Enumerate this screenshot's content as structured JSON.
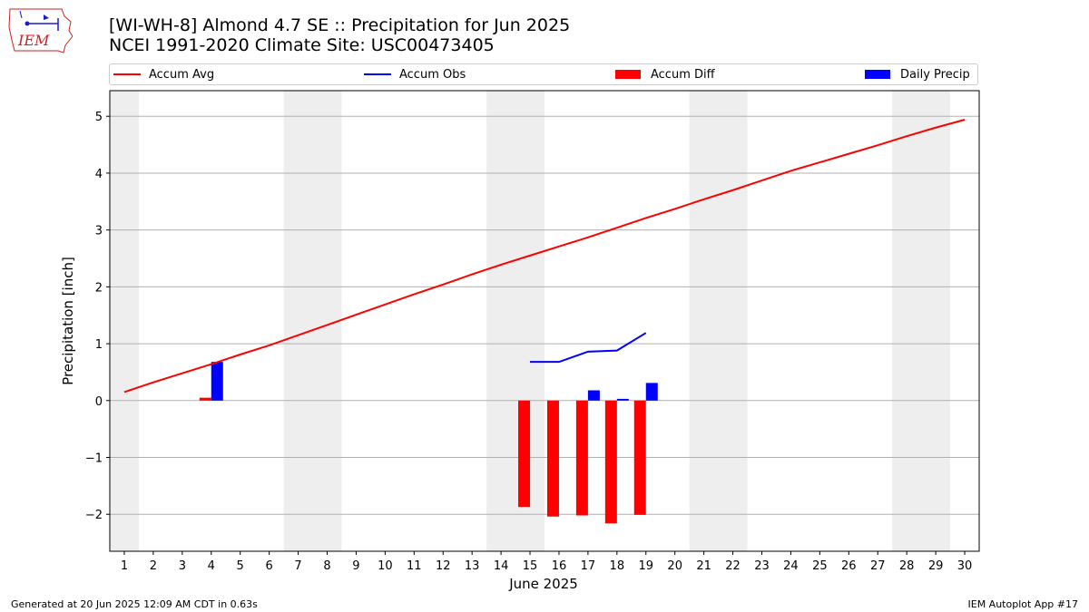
{
  "header": {
    "title_line1": "[WI-WH-8] Almond 4.7 SE :: Precipitation for Jun 2025",
    "title_line2": "NCEI 1991-2020 Climate Site: USC00473405",
    "logo_text": "IEM"
  },
  "legend": {
    "items": [
      {
        "label": "Accum Avg",
        "kind": "line",
        "color": "#ff0000"
      },
      {
        "label": "Accum Obs",
        "kind": "line",
        "color": "#0000ff"
      },
      {
        "label": "Accum Diff",
        "kind": "patch",
        "color": "#ff0000"
      },
      {
        "label": "Daily Precip",
        "kind": "patch",
        "color": "#0000ff"
      }
    ]
  },
  "chart_data": {
    "type": "bar",
    "xlabel": "June 2025",
    "ylabel": "Precipitation [inch]",
    "xlim": [
      0.5,
      30.5
    ],
    "ylim": [
      -2.65,
      5.45
    ],
    "x_ticks": [
      1,
      2,
      3,
      4,
      5,
      6,
      7,
      8,
      9,
      10,
      11,
      12,
      13,
      14,
      15,
      16,
      17,
      18,
      19,
      20,
      21,
      22,
      23,
      24,
      25,
      26,
      27,
      28,
      29,
      30
    ],
    "y_ticks": [
      -2,
      -1,
      0,
      1,
      2,
      3,
      4,
      5
    ],
    "y_tick_labels": [
      "−2",
      "−1",
      "0",
      "1",
      "2",
      "3",
      "4",
      "5"
    ],
    "grid": "horizontal",
    "legend_position": "top",
    "weekend_shading": [
      [
        0.5,
        1.5
      ],
      [
        6.5,
        8.5
      ],
      [
        13.5,
        15.5
      ],
      [
        20.5,
        22.5
      ],
      [
        27.5,
        29.5
      ]
    ],
    "accum_avg": {
      "name": "Accum Avg",
      "color": "#ff0000",
      "x": [
        1,
        2,
        3,
        4,
        5,
        6,
        7,
        8,
        9,
        10,
        11,
        12,
        13,
        14,
        15,
        16,
        17,
        18,
        19,
        20,
        21,
        22,
        23,
        24,
        25,
        26,
        27,
        28,
        29,
        30
      ],
      "y": [
        0.15,
        0.32,
        0.48,
        0.64,
        0.81,
        0.97,
        1.15,
        1.33,
        1.51,
        1.69,
        1.87,
        2.04,
        2.22,
        2.39,
        2.55,
        2.71,
        2.87,
        3.04,
        3.21,
        3.37,
        3.54,
        3.7,
        3.87,
        4.04,
        4.19,
        4.34,
        4.49,
        4.65,
        4.8,
        4.94
      ]
    },
    "accum_obs": {
      "name": "Accum Obs",
      "color": "#0000ff",
      "x": [
        15,
        16,
        17,
        18,
        19
      ],
      "y": [
        0.68,
        0.68,
        0.86,
        0.88,
        1.19
      ]
    },
    "accum_diff": {
      "name": "Accum Diff",
      "color": "#ff0000",
      "x": [
        4,
        15,
        16,
        17,
        18,
        19
      ],
      "y": [
        0.05,
        -1.87,
        -2.04,
        -2.02,
        -2.16,
        -2.01
      ]
    },
    "daily_precip": {
      "name": "Daily Precip",
      "color": "#0000ff",
      "x": [
        4,
        17,
        18,
        19
      ],
      "y": [
        0.68,
        0.18,
        0.03,
        0.31
      ]
    }
  },
  "footer": {
    "generated": "Generated at 20 Jun 2025 12:09 AM CDT in 0.63s",
    "app": "IEM Autoplot App #17"
  }
}
